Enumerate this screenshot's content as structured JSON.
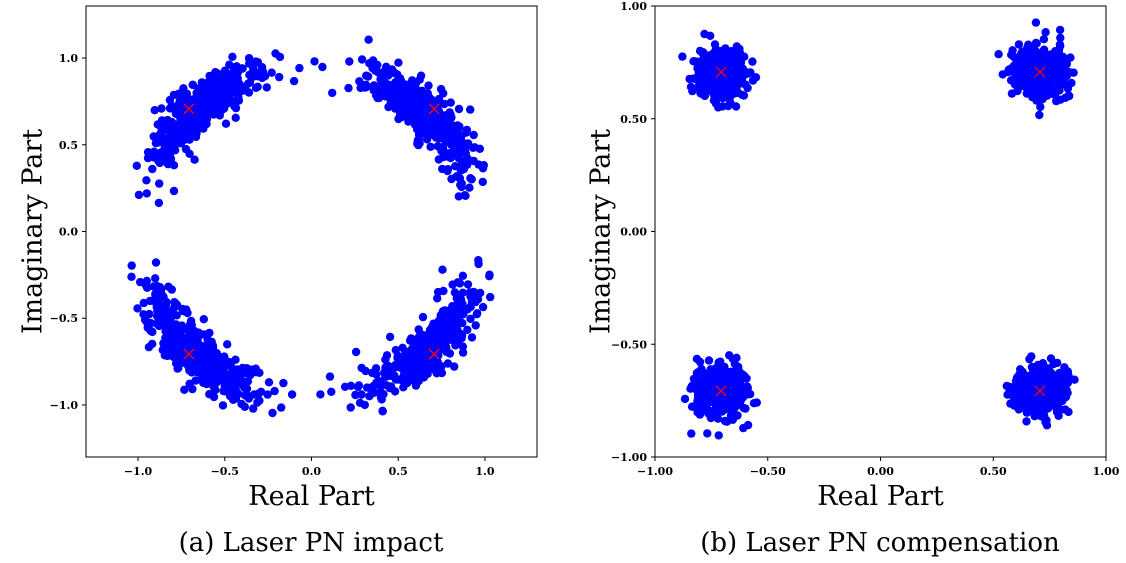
{
  "chart_data": [
    {
      "type": "scatter",
      "title": "",
      "caption": "(a) Laser PN impact",
      "xlabel": "Real Part",
      "ylabel": "Imaginary Part",
      "xlim": [
        -1.3,
        1.3
      ],
      "ylim": [
        -1.3,
        1.3
      ],
      "xticks": [
        -1.0,
        -0.5,
        0.0,
        0.5,
        1.0
      ],
      "yticks": [
        -1.0,
        -0.5,
        0.0,
        0.5,
        1.0
      ],
      "xtick_labels": [
        "−1.0",
        "−0.5",
        "0.0",
        "0.5",
        "1.0"
      ],
      "ytick_labels": [
        "−1.0",
        "−0.5",
        "0.0",
        "0.5",
        "1.0"
      ],
      "grid": false,
      "points_color": "#0000ff",
      "marker_color": "#ff0000",
      "reference_points": [
        [
          -0.707,
          0.707
        ],
        [
          0.707,
          0.707
        ],
        [
          -0.707,
          -0.707
        ],
        [
          0.707,
          -0.707
        ]
      ],
      "clusters": [
        {
          "center": [
            -0.65,
            0.72
          ],
          "spread": 0.06,
          "rotation_spread": 0.23,
          "count": 420
        },
        {
          "center": [
            0.65,
            0.7
          ],
          "spread": 0.06,
          "rotation_spread": 0.23,
          "count": 420
        },
        {
          "center": [
            -0.68,
            -0.7
          ],
          "spread": 0.06,
          "rotation_spread": 0.23,
          "count": 420
        },
        {
          "center": [
            0.68,
            -0.69
          ],
          "spread": 0.06,
          "rotation_spread": 0.23,
          "count": 420
        }
      ]
    },
    {
      "type": "scatter",
      "title": "",
      "caption": "(b) Laser PN compensation",
      "xlabel": "Real Part",
      "ylabel": "Imaginary Part",
      "xlim": [
        -1.0,
        1.0
      ],
      "ylim": [
        -1.0,
        1.0
      ],
      "xticks": [
        -1.0,
        -0.5,
        0.0,
        0.5,
        1.0
      ],
      "yticks": [
        -1.0,
        -0.5,
        0.0,
        0.5,
        1.0
      ],
      "xtick_labels": [
        "−1.00",
        "−0.50",
        "0.00",
        "0.50",
        "1.00"
      ],
      "ytick_labels": [
        "−1.00",
        "−0.50",
        "0.00",
        "0.50",
        "1.00"
      ],
      "grid": false,
      "points_color": "#0000ff",
      "marker_color": "#ff0000",
      "reference_points": [
        [
          -0.707,
          0.707
        ],
        [
          0.707,
          0.707
        ],
        [
          -0.707,
          -0.707
        ],
        [
          0.707,
          -0.707
        ]
      ],
      "clusters": [
        {
          "center": [
            -0.707,
            0.707
          ],
          "spread": 0.055,
          "rotation_spread": 0.0,
          "count": 420
        },
        {
          "center": [
            0.707,
            0.707
          ],
          "spread": 0.055,
          "rotation_spread": 0.0,
          "count": 420
        },
        {
          "center": [
            -0.707,
            -0.707
          ],
          "spread": 0.055,
          "rotation_spread": 0.0,
          "count": 420
        },
        {
          "center": [
            0.707,
            -0.707
          ],
          "spread": 0.055,
          "rotation_spread": 0.0,
          "count": 420
        }
      ]
    }
  ]
}
